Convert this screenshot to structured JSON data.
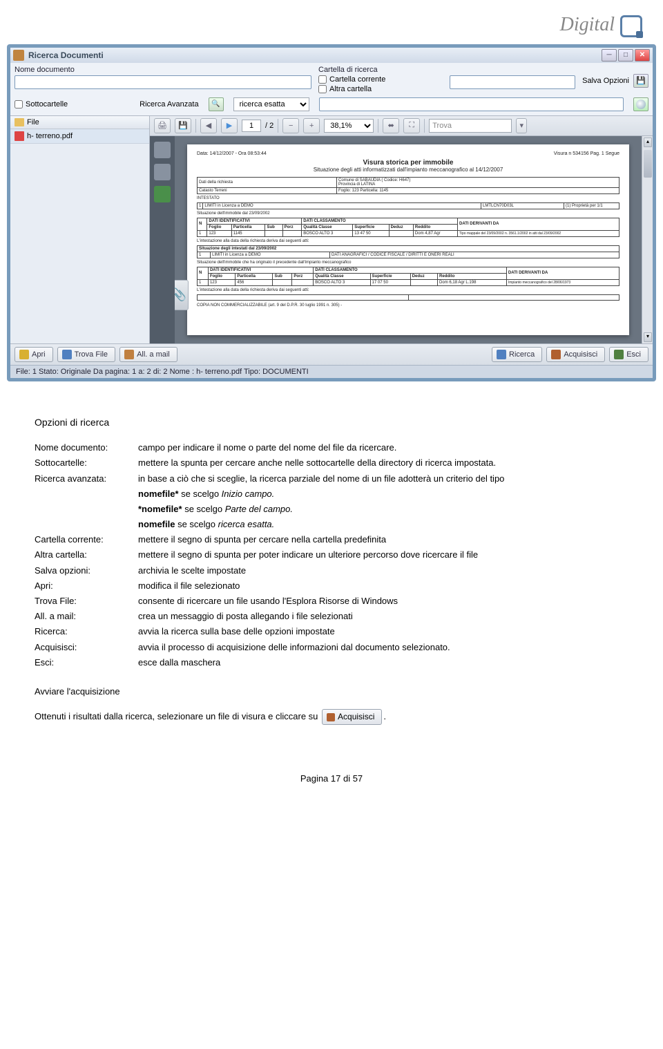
{
  "logo": "Digital",
  "window_title": "Ricerca Documenti",
  "form": {
    "nome_label": "Nome documento",
    "cartella_label": "Cartella di ricerca",
    "cartella_corrente": "Cartella corrente",
    "altra_cartella": "Altra cartella",
    "salva_opzioni": "Salva Opzioni",
    "sottocartelle": "Sottocartelle",
    "ricerca_avanzata": "Ricerca Avanzata",
    "ricerca_esatta": "ricerca esatta"
  },
  "sidebar": {
    "header": "File",
    "item": "h- terreno.pdf"
  },
  "pdfbar": {
    "page": "1",
    "pages": "2",
    "zoom": "38,1%",
    "trova": "Trova"
  },
  "doc": {
    "date": "Data: 14/12/2007 - Ora 08:53:44",
    "pagehdr": "Visura n 534156 Pag. 1    Segue",
    "title": "Visura storica per immobile",
    "subtitle": "Situazione degli atti informatizzati dall'impianto meccanografico al 14/12/2007",
    "r1a": "Dati della richiesta",
    "r1b": "Comune di SABAUDIA ( Codice: H647)",
    "r1c": "Provincia di LATINA",
    "r1d": "Catasto Terreni",
    "r1e": "Foglio: 123 Particella: 1145",
    "intest": "INTESTATO",
    "situaz": "Situazione dell'immobile dal 23/09/2002",
    "copia": "COPIA NON COMMERCIALIZZABILE (art. 9 del D.P.R. 30 luglio 1991 n. 305) -"
  },
  "buttons": {
    "apri": "Apri",
    "trova": "Trova File",
    "mail": "All. a mail",
    "ricerca": "Ricerca",
    "acquisisci": "Acquisisci",
    "esci": "Esci"
  },
  "status": "File: 1   Stato: Originale   Da pagina: 1 a: 2 di: 2    Nome : h- terreno.pdf    Tipo: DOCUMENTI",
  "text": {
    "h": "Opzioni di ricerca",
    "defs": [
      {
        "t": "Nome documento:",
        "d": "campo per indicare il nome o parte del nome del file da ricercare."
      },
      {
        "t": "Sottocartelle:",
        "d": "mettere la spunta per cercare anche nelle sottocartelle della directory di ricerca impostata."
      },
      {
        "t": "Ricerca avanzata:",
        "d": "in base a ciò che si sceglie, la ricerca parziale del nome di un file adotterà un criterio del tipo"
      },
      {
        "t": "",
        "d": "<b>nomefile*</b>   se scelgo <i>Inizio campo.</i>"
      },
      {
        "t": "",
        "d": "<b>*nomefile*</b> se scelgo <i>Parte del campo.</i>"
      },
      {
        "t": "",
        "d": "<b>nomefile</b> se scelgo <i>ricerca esatta.</i>"
      },
      {
        "t": "Cartella corrente:",
        "d": "mettere il segno di spunta per cercare nella cartella predefinita"
      },
      {
        "t": "Altra cartella:",
        "d": "mettere il segno di spunta per poter indicare un ulteriore percorso dove ricercare il file"
      },
      {
        "t": "Salva opzioni:",
        "d": "archivia le scelte impostate"
      },
      {
        "t": "Apri:",
        "d": "modifica il file selezionato"
      },
      {
        "t": "Trova File:",
        "d": "consente di ricercare un file usando l'Esplora Risorse di Windows"
      },
      {
        "t": "All. a mail:",
        "d": "crea un messaggio di posta allegando i file selezionati"
      },
      {
        "t": "Ricerca:",
        "d": "avvia la ricerca sulla base delle opzioni impostate"
      },
      {
        "t": "Acquisisci:",
        "d": "avvia il processo di acquisizione delle informazioni dal documento selezionato."
      },
      {
        "t": "Esci:",
        "d": "esce dalla maschera"
      }
    ],
    "avviare": "Avviare l'acquisizione",
    "ottenuti": "Ottenuti i risultati dalla ricerca, selezionare un file di visura e cliccare su",
    "acq_btn": "Acquisisci"
  },
  "footer": "Pagina 17 di 57"
}
